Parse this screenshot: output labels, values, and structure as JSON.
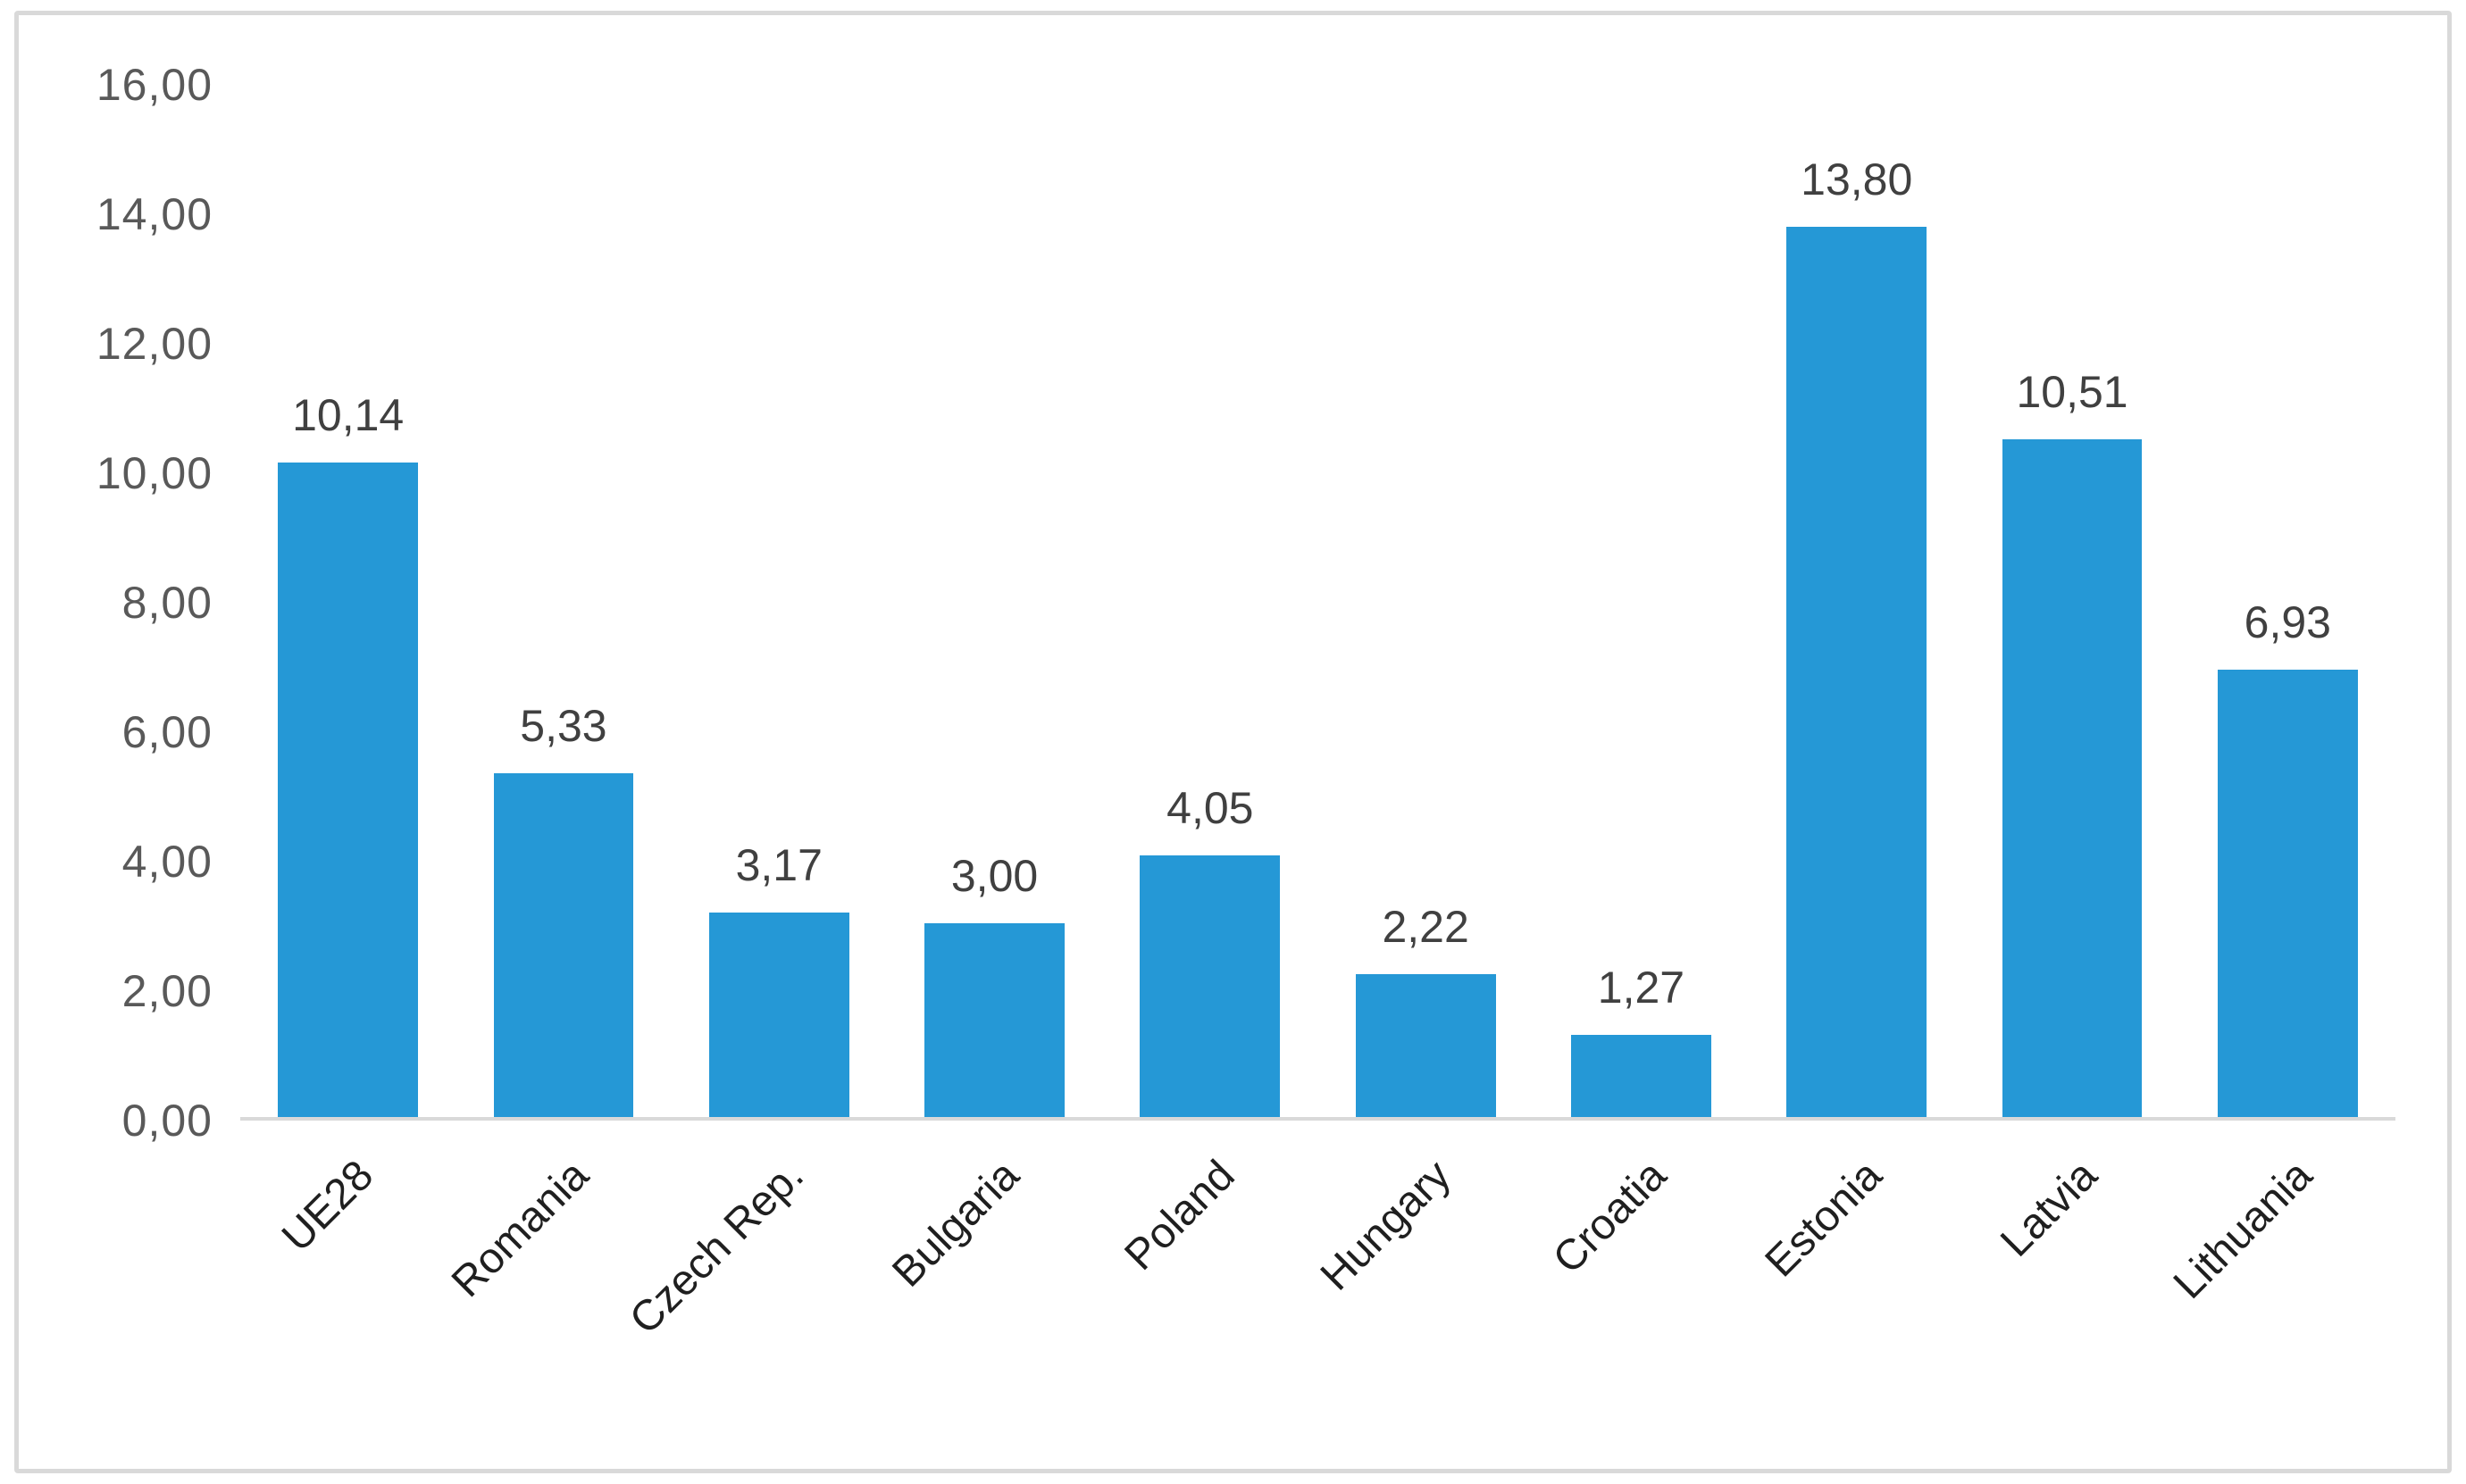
{
  "figure": {
    "background": "#FFFFFF",
    "border_color": "#D9D9D9"
  },
  "chart_data": {
    "type": "bar",
    "title": "",
    "xlabel": "",
    "ylabel": "",
    "categories": [
      "UE28",
      "Romania",
      "Czech Rep.",
      "Bulgaria",
      "Poland",
      "Hungary",
      "Croatia",
      "Estonia",
      "Latvia",
      "Lithuania"
    ],
    "values": [
      10.14,
      5.33,
      3.17,
      3.0,
      4.05,
      2.22,
      1.27,
      13.8,
      10.51,
      6.93
    ],
    "value_labels": [
      "10,14",
      "5,33",
      "3,17",
      "3,00",
      "4,05",
      "2,22",
      "1,27",
      "13,80",
      "10,51",
      "6,93"
    ],
    "ylim": [
      0,
      16
    ],
    "y_ticks": [
      {
        "value": 0,
        "label": "0,00"
      },
      {
        "value": 2,
        "label": "2,00"
      },
      {
        "value": 4,
        "label": "4,00"
      },
      {
        "value": 6,
        "label": "6,00"
      },
      {
        "value": 8,
        "label": "8,00"
      },
      {
        "value": 10,
        "label": "10,00"
      },
      {
        "value": 12,
        "label": "12,00"
      },
      {
        "value": 14,
        "label": "14,00"
      },
      {
        "value": 16,
        "label": "16,00"
      }
    ],
    "grid": false,
    "legend": false,
    "decimal_separator": ",",
    "bar_color": "#2598D6",
    "axis_line_color": "#D9D9D9",
    "tick_label_color": "#595959",
    "data_label_color": "#404040",
    "x_label_color": "#1F1F1F"
  }
}
